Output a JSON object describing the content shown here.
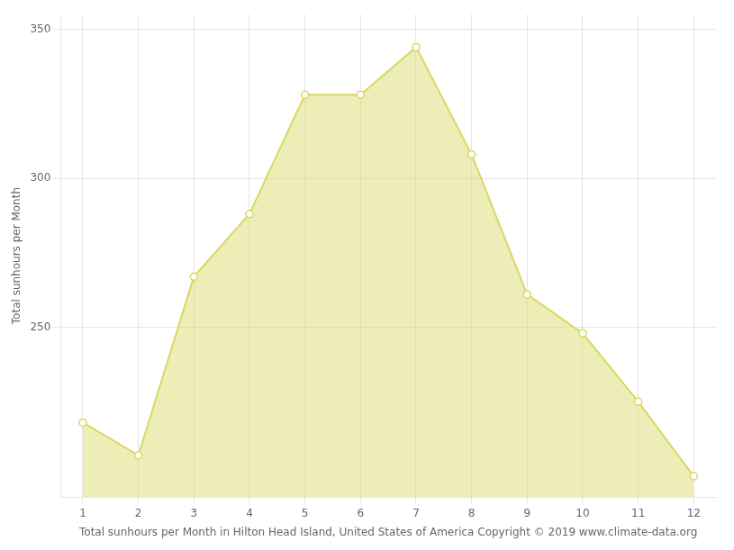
{
  "chart_data": {
    "type": "area",
    "x": [
      1,
      2,
      3,
      4,
      5,
      6,
      7,
      8,
      9,
      10,
      11,
      12
    ],
    "values": [
      218,
      207,
      267,
      288,
      328,
      328,
      344,
      308,
      261,
      248,
      225,
      200
    ],
    "color": "#D8D860",
    "marker": "circle",
    "xlabel": "Total sunhours per Month in Hilton Head Island, United States of America Copyright © 2019 www.climate-data.org",
    "ylabel": "Total sunhours per Month",
    "xlim": [
      0.6,
      12.4
    ],
    "xticks": [
      1,
      2,
      3,
      4,
      5,
      6,
      7,
      8,
      9,
      10,
      11,
      12
    ],
    "ylim": [
      193,
      355
    ],
    "yticks": [
      250,
      300,
      350
    ],
    "grid": true
  }
}
